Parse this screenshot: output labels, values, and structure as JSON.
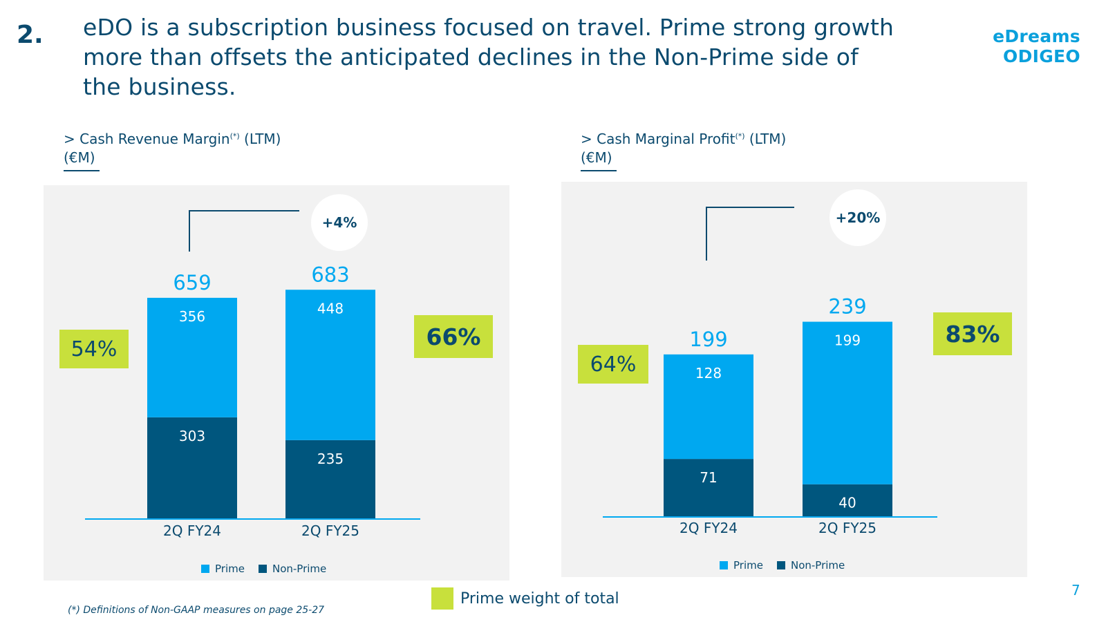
{
  "slide": {
    "number": "2.",
    "title": "eDO is a subscription business focused on travel. Prime strong growth more than offsets the anticipated declines in the Non-Prime side of the business.",
    "logo": "eDreams ODIGEO",
    "page_number": "7",
    "footnote": "(*) Definitions of Non-GAAP measures on page 25-27",
    "key_label": "Prime weight of total"
  },
  "colors": {
    "prime": "#00a8f0",
    "non_prime": "#00567e",
    "highlight": "#c8e03c",
    "text": "#0b4a6e",
    "accent": "#0aa0dc"
  },
  "chart_data": [
    {
      "type": "bar",
      "stacked": true,
      "title_prefix": "> Cash Revenue Margin",
      "title_sup": "(*)",
      "title_suffix": " (LTM)",
      "unit": "(€M)",
      "categories": [
        "2Q FY24",
        "2Q FY25"
      ],
      "series": [
        {
          "name": "Non-Prime",
          "values": [
            303,
            235
          ]
        },
        {
          "name": "Prime",
          "values": [
            356,
            448
          ]
        }
      ],
      "totals": [
        659,
        683
      ],
      "totals_labels": [
        "659",
        "683"
      ],
      "growth": "+4%",
      "prime_weight": [
        "54%",
        "66%"
      ],
      "ylim": [
        0,
        700
      ],
      "legend": [
        "Prime",
        "Non-Prime"
      ]
    },
    {
      "type": "bar",
      "stacked": true,
      "title_prefix": "> Cash Marginal Profit",
      "title_sup": "(*)",
      "title_suffix": " (LTM)",
      "unit": "(€M)",
      "categories": [
        "2Q FY24",
        "2Q FY25"
      ],
      "series": [
        {
          "name": "Non-Prime",
          "values": [
            71,
            40
          ]
        },
        {
          "name": "Prime",
          "values": [
            128,
            199
          ]
        }
      ],
      "totals": [
        199,
        239
      ],
      "totals_labels": [
        "199",
        "239"
      ],
      "growth": "+20%",
      "prime_weight": [
        "64%",
        "83%"
      ],
      "ylim": [
        0,
        275
      ],
      "legend": [
        "Prime",
        "Non-Prime"
      ]
    }
  ]
}
